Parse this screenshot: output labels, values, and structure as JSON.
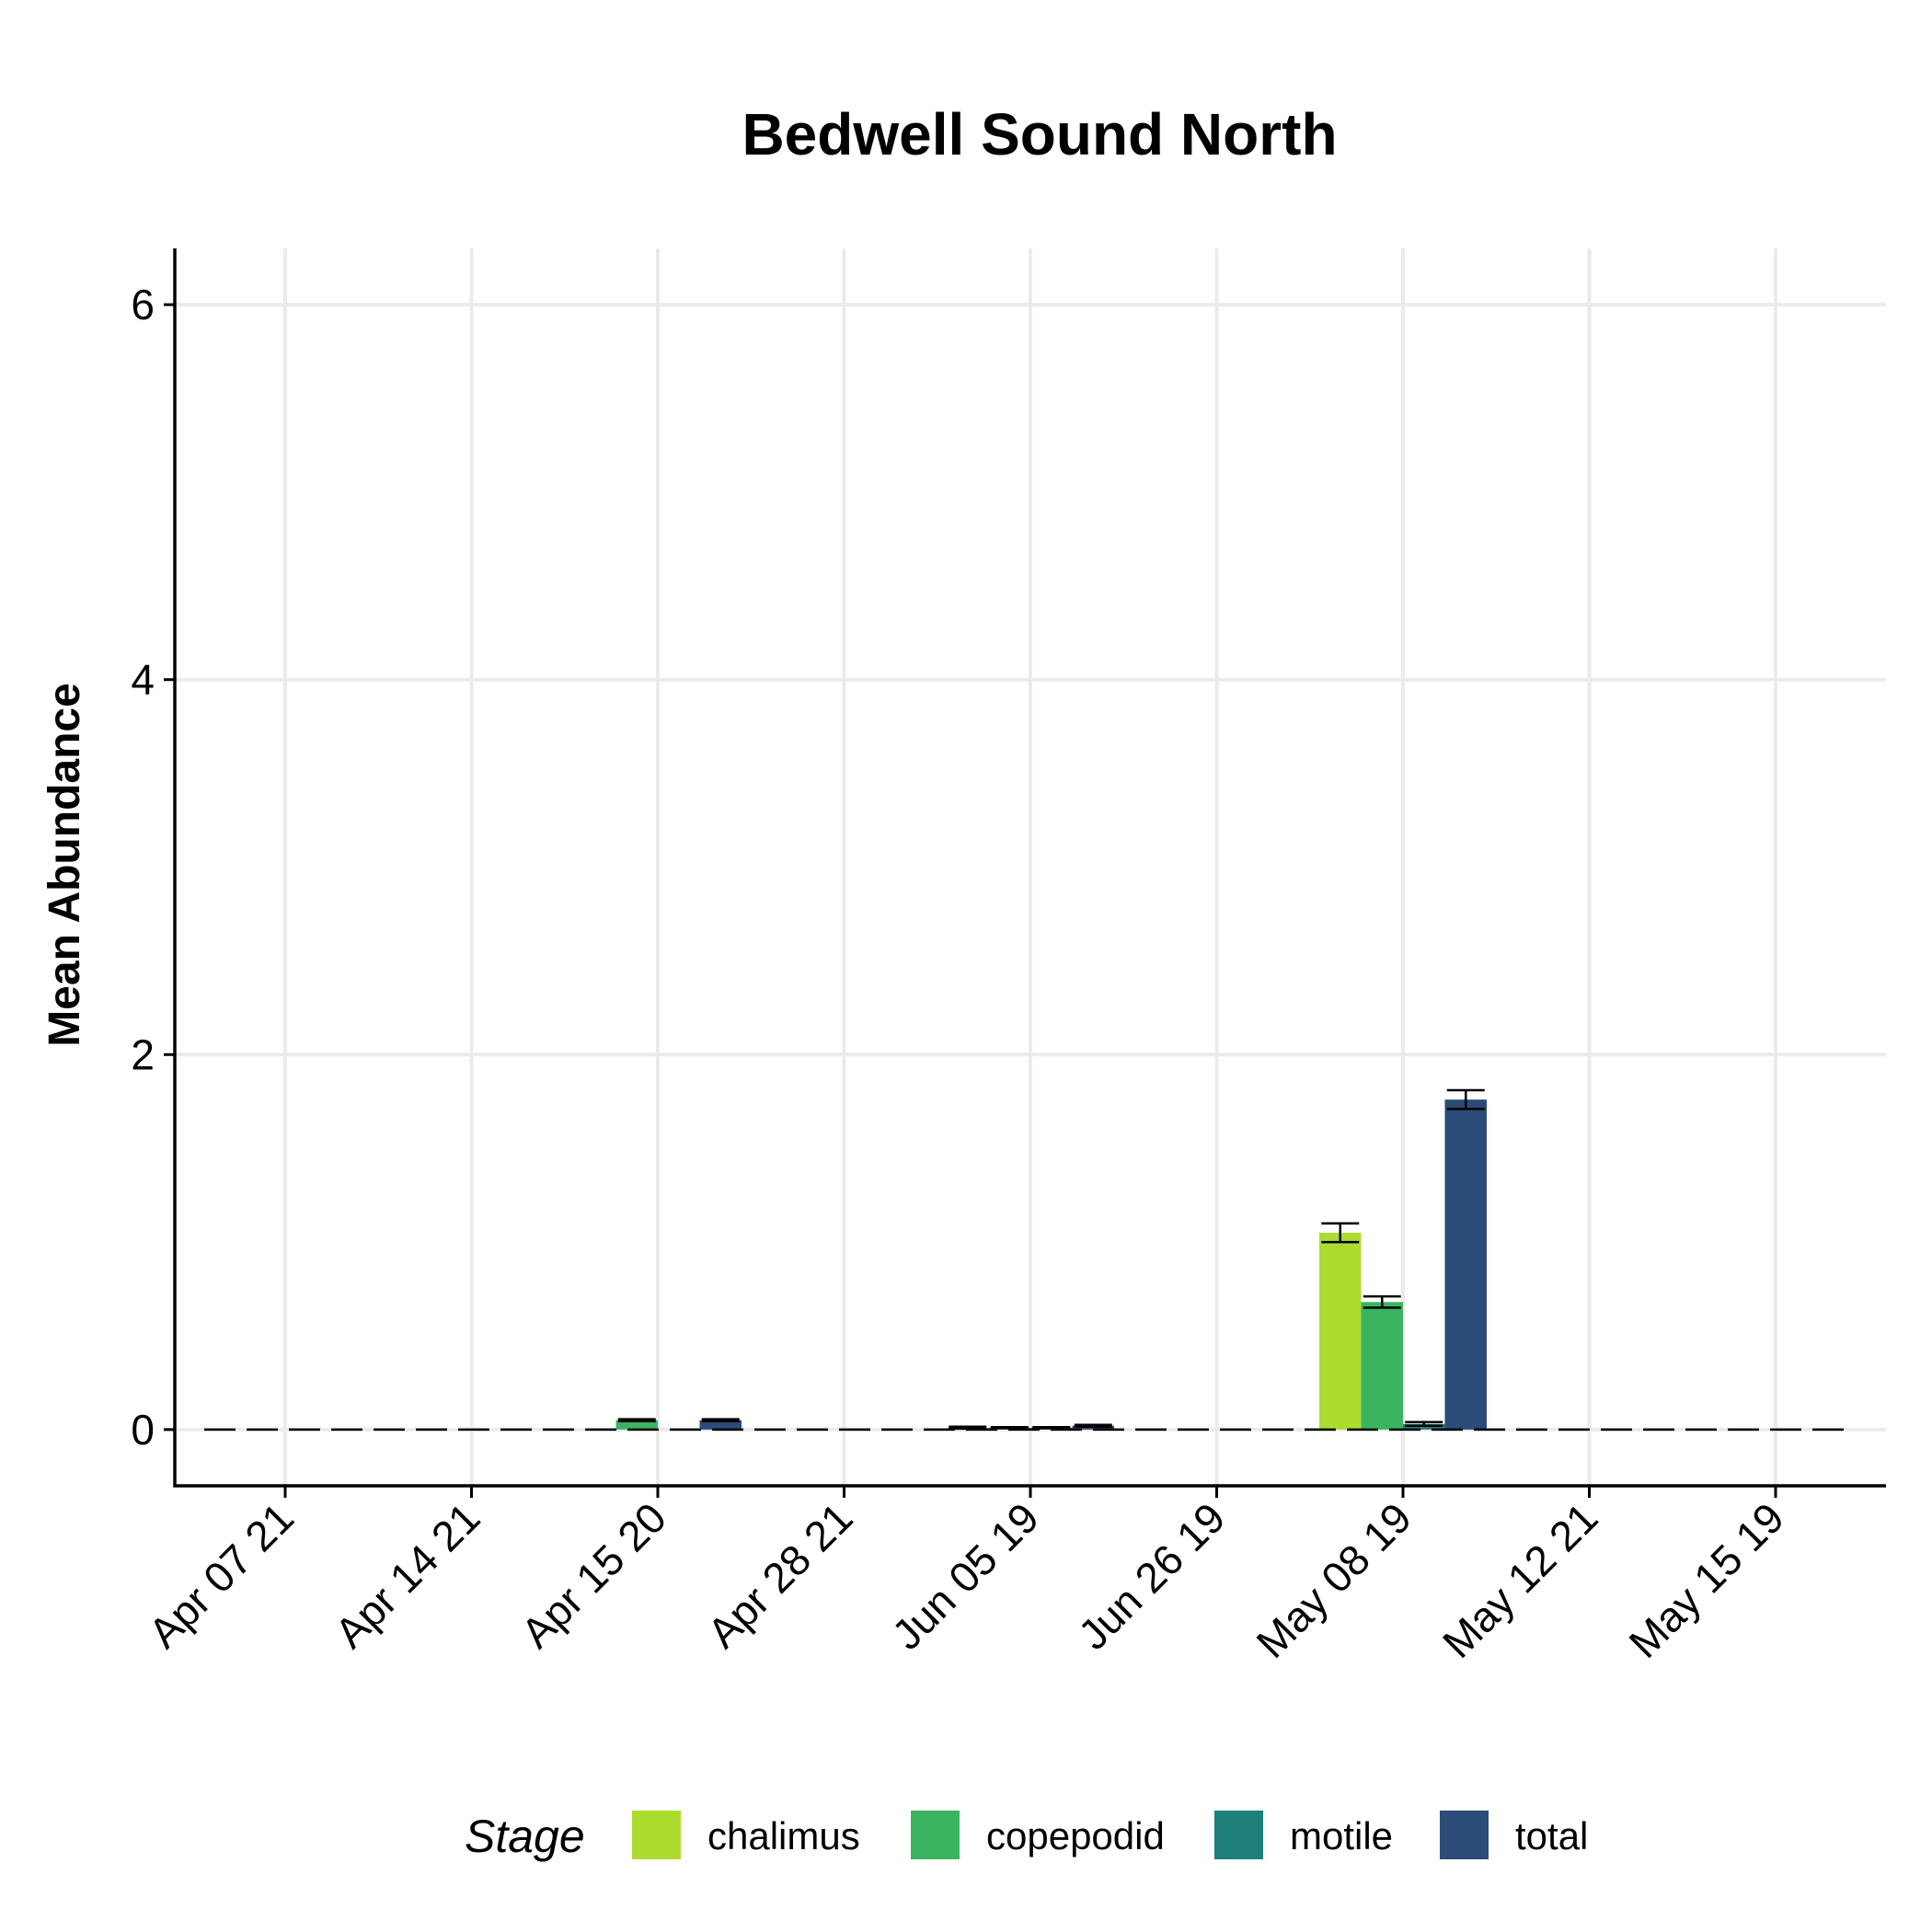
{
  "chart_data": {
    "type": "bar",
    "title": "Bedwell Sound North",
    "xlabel": "",
    "ylabel": "Mean Abundance",
    "ylim": [
      -0.3,
      6.3
    ],
    "yticks": [
      0,
      2,
      4,
      6
    ],
    "grid": true,
    "legend_title": "Stage",
    "legend_position": "bottom",
    "reference_line": {
      "y": 0,
      "style": "dashed"
    },
    "categories": [
      "Apr 07 21",
      "Apr 14 21",
      "Apr 15 20",
      "Apr 28 21",
      "Jun 05 19",
      "Jun 26 19",
      "May 08 19",
      "May 12 21",
      "May 15 19"
    ],
    "series": [
      {
        "name": "chalimus",
        "color": "#addc30",
        "values": [
          0,
          0,
          0,
          0,
          0.01,
          0,
          1.05,
          0,
          0
        ],
        "error": [
          0,
          0,
          0,
          0,
          0.005,
          0,
          0.05,
          0,
          0
        ]
      },
      {
        "name": "copepodid",
        "color": "#3bb45f",
        "values": [
          0,
          0,
          0.05,
          0,
          0.01,
          0,
          0.68,
          0,
          0
        ],
        "error": [
          0,
          0,
          0.005,
          0,
          0.003,
          0,
          0.03,
          0,
          0
        ]
      },
      {
        "name": "motile",
        "color": "#1f7f7a",
        "values": [
          0,
          0,
          0,
          0,
          0.01,
          0,
          0.03,
          0,
          0
        ],
        "error": [
          0,
          0,
          0,
          0,
          0.003,
          0,
          0.01,
          0,
          0
        ]
      },
      {
        "name": "total",
        "color": "#2b4b78",
        "values": [
          0,
          0,
          0.05,
          0,
          0.02,
          0,
          1.76,
          0,
          0
        ],
        "error": [
          0,
          0,
          0.005,
          0,
          0.005,
          0,
          0.05,
          0,
          0
        ]
      }
    ]
  }
}
